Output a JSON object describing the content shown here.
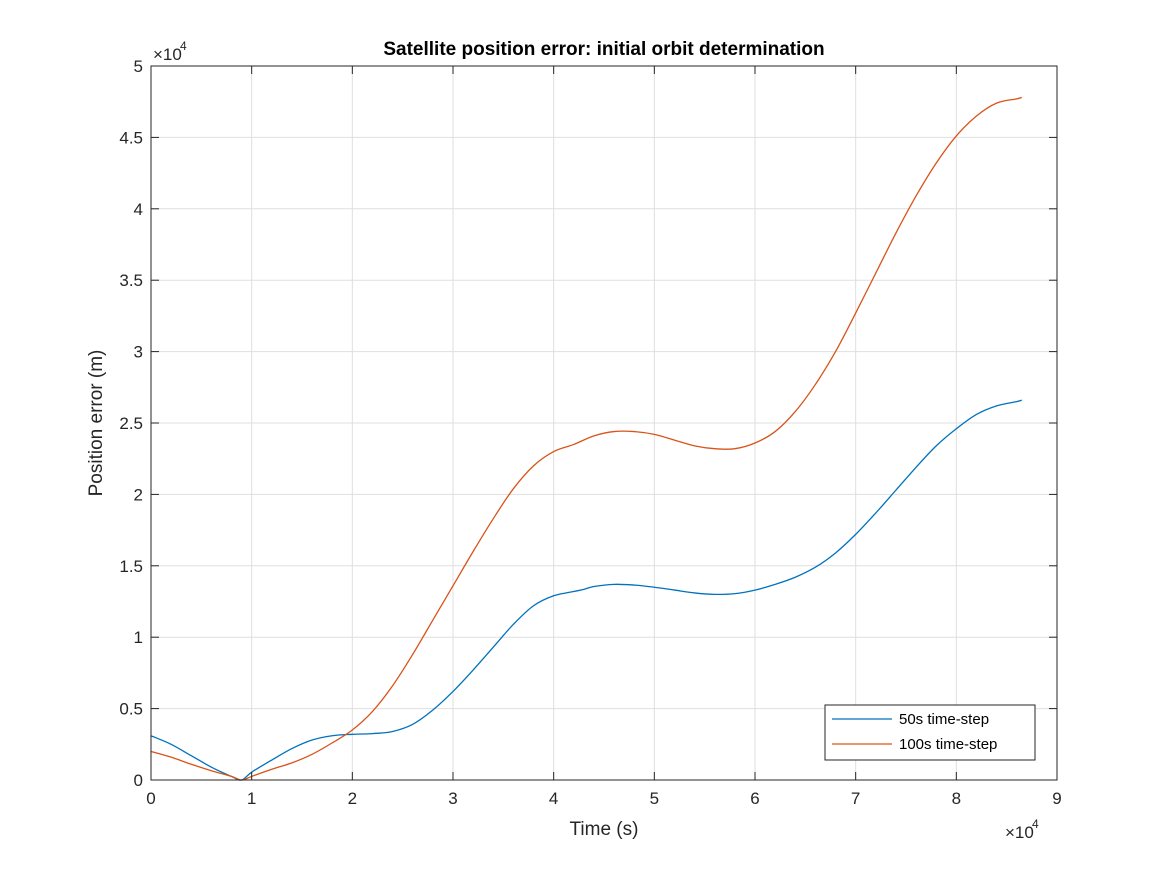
{
  "chart_data": {
    "type": "line",
    "title": "Satellite position error: initial orbit determination",
    "xlabel": "Time (s)",
    "ylabel": "Position error (m)",
    "xlim": [
      0,
      90000
    ],
    "ylim": [
      0,
      50000
    ],
    "x_ticks": [
      "0",
      "1",
      "2",
      "3",
      "4",
      "5",
      "6",
      "7",
      "8",
      "9"
    ],
    "y_ticks": [
      "0",
      "0.5",
      "1",
      "1.5",
      "2",
      "2.5",
      "3",
      "3.5",
      "4",
      "4.5",
      "5"
    ],
    "x_exponent": {
      "base": "×10",
      "power": "4"
    },
    "y_exponent": {
      "base": "×10",
      "power": "4"
    },
    "grid": true,
    "legend_position": "bottom-right",
    "series": [
      {
        "name": "50s time-step",
        "color": "#0072BD",
        "x": [
          0,
          2000,
          4000,
          6000,
          8000,
          9000,
          10000,
          12000,
          14000,
          16000,
          18000,
          20000,
          22000,
          24000,
          26000,
          28000,
          30000,
          32000,
          34000,
          36000,
          38000,
          40000,
          42000,
          43000,
          44000,
          46000,
          48000,
          50000,
          52000,
          54000,
          56000,
          58000,
          60000,
          62000,
          64000,
          66000,
          68000,
          70000,
          72000,
          74000,
          76000,
          78000,
          80000,
          82000,
          84000,
          86000,
          86500
        ],
        "y": [
          3100,
          2500,
          1700,
          900,
          250,
          0,
          550,
          1400,
          2200,
          2800,
          3100,
          3200,
          3250,
          3400,
          3900,
          4900,
          6200,
          7700,
          9300,
          10900,
          12200,
          12900,
          13200,
          13350,
          13550,
          13700,
          13650,
          13500,
          13300,
          13100,
          13000,
          13050,
          13300,
          13700,
          14200,
          14900,
          15900,
          17200,
          18700,
          20300,
          21900,
          23400,
          24600,
          25600,
          26200,
          26500,
          26600
        ]
      },
      {
        "name": "100s time-step",
        "color": "#D95319",
        "x": [
          0,
          2000,
          4000,
          6000,
          8000,
          9000,
          10000,
          12000,
          14000,
          16000,
          18000,
          20000,
          22000,
          24000,
          26000,
          28000,
          30000,
          32000,
          34000,
          36000,
          38000,
          40000,
          42000,
          44000,
          46000,
          48000,
          50000,
          52000,
          54000,
          56000,
          58000,
          60000,
          62000,
          64000,
          66000,
          68000,
          70000,
          72000,
          74000,
          76000,
          78000,
          80000,
          82000,
          84000,
          86000,
          86500
        ],
        "y": [
          2000,
          1600,
          1100,
          650,
          250,
          0,
          250,
          750,
          1200,
          1800,
          2600,
          3500,
          4800,
          6600,
          8800,
          11200,
          13600,
          16000,
          18300,
          20400,
          22000,
          23000,
          23500,
          24100,
          24400,
          24400,
          24200,
          23800,
          23400,
          23200,
          23200,
          23600,
          24400,
          25800,
          27700,
          30000,
          32700,
          35500,
          38300,
          40900,
          43200,
          45100,
          46500,
          47400,
          47700,
          47800
        ]
      }
    ]
  }
}
